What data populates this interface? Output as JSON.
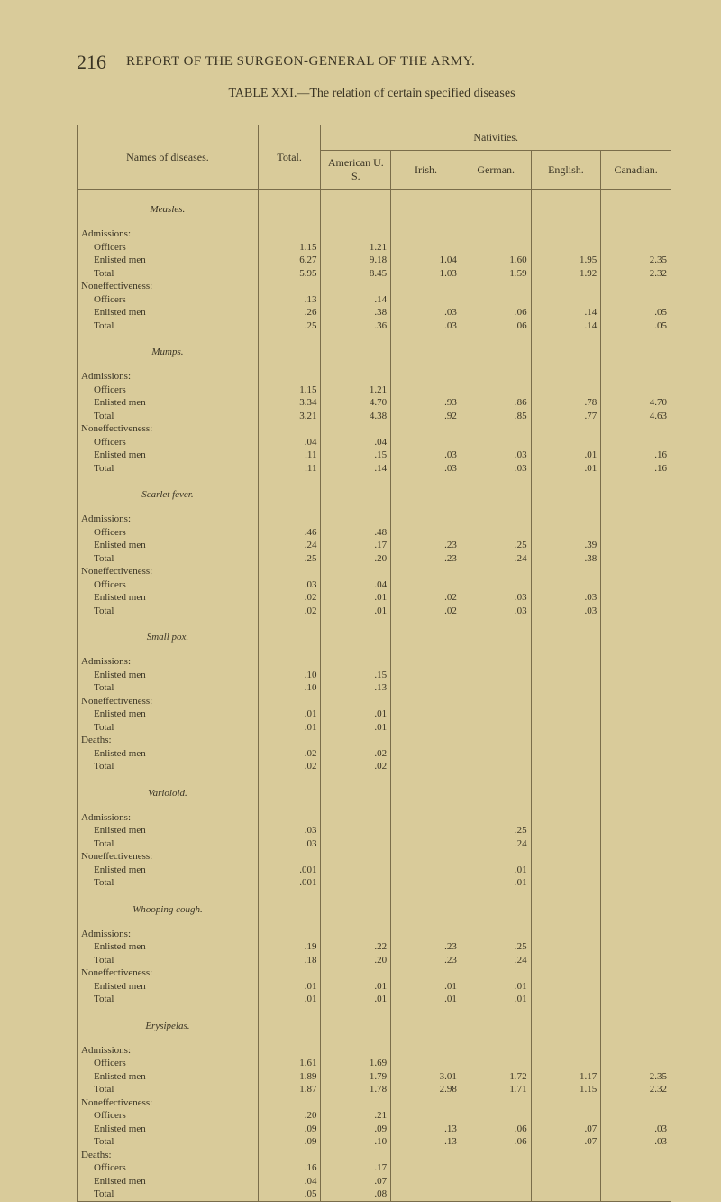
{
  "page_number": "216",
  "running_head": "REPORT OF THE SURGEON-GENERAL OF THE ARMY.",
  "table_caption": "TABLE XXI.—The relation of certain specified diseases",
  "columns": {
    "names": "Names of diseases.",
    "total": "Total.",
    "nativities": "Nativities.",
    "american": "American\nU. S.",
    "irish": "Irish.",
    "german": "German.",
    "english": "English.",
    "canadian": "Canadian."
  },
  "diseases": [
    {
      "name": "Measles.",
      "sections": [
        {
          "title": "Admissions:",
          "rows": [
            {
              "label": "Officers",
              "total": "1.15",
              "am": "1.21",
              "ir": "",
              "ge": "",
              "en": "",
              "ca": ""
            },
            {
              "label": "Enlisted men",
              "total": "6.27",
              "am": "9.18",
              "ir": "1.04",
              "ge": "1.60",
              "en": "1.95",
              "ca": "2.35"
            },
            {
              "label": "Total",
              "total": "5.95",
              "am": "8.45",
              "ir": "1.03",
              "ge": "1.59",
              "en": "1.92",
              "ca": "2.32"
            }
          ]
        },
        {
          "title": "Noneffectiveness:",
          "rows": [
            {
              "label": "Officers",
              "total": ".13",
              "am": ".14",
              "ir": "",
              "ge": "",
              "en": "",
              "ca": ""
            },
            {
              "label": "Enlisted men",
              "total": ".26",
              "am": ".38",
              "ir": ".03",
              "ge": ".06",
              "en": ".14",
              "ca": ".05"
            },
            {
              "label": "Total",
              "total": ".25",
              "am": ".36",
              "ir": ".03",
              "ge": ".06",
              "en": ".14",
              "ca": ".05"
            }
          ]
        }
      ]
    },
    {
      "name": "Mumps.",
      "sections": [
        {
          "title": "Admissions:",
          "rows": [
            {
              "label": "Officers",
              "total": "1.15",
              "am": "1.21",
              "ir": "",
              "ge": "",
              "en": "",
              "ca": ""
            },
            {
              "label": "Enlisted men",
              "total": "3.34",
              "am": "4.70",
              "ir": ".93",
              "ge": ".86",
              "en": ".78",
              "ca": "4.70"
            },
            {
              "label": "Total",
              "total": "3.21",
              "am": "4.38",
              "ir": ".92",
              "ge": ".85",
              "en": ".77",
              "ca": "4.63"
            }
          ]
        },
        {
          "title": "Noneffectiveness:",
          "rows": [
            {
              "label": "Officers",
              "total": ".04",
              "am": ".04",
              "ir": "",
              "ge": "",
              "en": "",
              "ca": ""
            },
            {
              "label": "Enlisted men",
              "total": ".11",
              "am": ".15",
              "ir": ".03",
              "ge": ".03",
              "en": ".01",
              "ca": ".16"
            },
            {
              "label": "Total",
              "total": ".11",
              "am": ".14",
              "ir": ".03",
              "ge": ".03",
              "en": ".01",
              "ca": ".16"
            }
          ]
        }
      ]
    },
    {
      "name": "Scarlet fever.",
      "sections": [
        {
          "title": "Admissions:",
          "rows": [
            {
              "label": "Officers",
              "total": ".46",
              "am": ".48",
              "ir": "",
              "ge": "",
              "en": "",
              "ca": ""
            },
            {
              "label": "Enlisted men",
              "total": ".24",
              "am": ".17",
              "ir": ".23",
              "ge": ".25",
              "en": ".39",
              "ca": ""
            },
            {
              "label": "Total",
              "total": ".25",
              "am": ".20",
              "ir": ".23",
              "ge": ".24",
              "en": ".38",
              "ca": ""
            }
          ]
        },
        {
          "title": "Noneffectiveness:",
          "rows": [
            {
              "label": "Officers",
              "total": ".03",
              "am": ".04",
              "ir": "",
              "ge": "",
              "en": "",
              "ca": ""
            },
            {
              "label": "Enlisted men",
              "total": ".02",
              "am": ".01",
              "ir": ".02",
              "ge": ".03",
              "en": ".03",
              "ca": ""
            },
            {
              "label": "Total",
              "total": ".02",
              "am": ".01",
              "ir": ".02",
              "ge": ".03",
              "en": ".03",
              "ca": ""
            }
          ]
        }
      ]
    },
    {
      "name": "Small pox.",
      "sections": [
        {
          "title": "Admissions:",
          "rows": [
            {
              "label": "Enlisted men",
              "total": ".10",
              "am": ".15",
              "ir": "",
              "ge": "",
              "en": "",
              "ca": ""
            },
            {
              "label": "Total",
              "total": ".10",
              "am": ".13",
              "ir": "",
              "ge": "",
              "en": "",
              "ca": ""
            }
          ]
        },
        {
          "title": "Noneffectiveness:",
          "rows": [
            {
              "label": "Enlisted men",
              "total": ".01",
              "am": ".01",
              "ir": "",
              "ge": "",
              "en": "",
              "ca": ""
            },
            {
              "label": "Total",
              "total": ".01",
              "am": ".01",
              "ir": "",
              "ge": "",
              "en": "",
              "ca": ""
            }
          ]
        },
        {
          "title": "Deaths:",
          "rows": [
            {
              "label": "Enlisted men",
              "total": ".02",
              "am": ".02",
              "ir": "",
              "ge": "",
              "en": "",
              "ca": ""
            },
            {
              "label": "Total",
              "total": ".02",
              "am": ".02",
              "ir": "",
              "ge": "",
              "en": "",
              "ca": ""
            }
          ]
        }
      ]
    },
    {
      "name": "Varioloid.",
      "sections": [
        {
          "title": "Admissions:",
          "rows": [
            {
              "label": "Enlisted men",
              "total": ".03",
              "am": "",
              "ir": "",
              "ge": ".25",
              "en": "",
              "ca": ""
            },
            {
              "label": "Total",
              "total": ".03",
              "am": "",
              "ir": "",
              "ge": ".24",
              "en": "",
              "ca": ""
            }
          ]
        },
        {
          "title": "Noneffectiveness:",
          "rows": [
            {
              "label": "Enlisted men",
              "total": ".001",
              "am": "",
              "ir": "",
              "ge": ".01",
              "en": "",
              "ca": ""
            },
            {
              "label": "Total",
              "total": ".001",
              "am": "",
              "ir": "",
              "ge": ".01",
              "en": "",
              "ca": ""
            }
          ]
        }
      ]
    },
    {
      "name": "Whooping cough.",
      "sections": [
        {
          "title": "Admissions:",
          "rows": [
            {
              "label": "Enlisted men",
              "total": ".19",
              "am": ".22",
              "ir": ".23",
              "ge": ".25",
              "en": "",
              "ca": ""
            },
            {
              "label": "Total",
              "total": ".18",
              "am": ".20",
              "ir": ".23",
              "ge": ".24",
              "en": "",
              "ca": ""
            }
          ]
        },
        {
          "title": "Noneffectiveness:",
          "rows": [
            {
              "label": "Enlisted men",
              "total": ".01",
              "am": ".01",
              "ir": ".01",
              "ge": ".01",
              "en": "",
              "ca": ""
            },
            {
              "label": "Total",
              "total": ".01",
              "am": ".01",
              "ir": ".01",
              "ge": ".01",
              "en": "",
              "ca": ""
            }
          ]
        }
      ]
    },
    {
      "name": "Erysipelas.",
      "sections": [
        {
          "title": "Admissions:",
          "rows": [
            {
              "label": "Officers",
              "total": "1.61",
              "am": "1.69",
              "ir": "",
              "ge": "",
              "en": "",
              "ca": ""
            },
            {
              "label": "Enlisted men",
              "total": "1.89",
              "am": "1.79",
              "ir": "3.01",
              "ge": "1.72",
              "en": "1.17",
              "ca": "2.35"
            },
            {
              "label": "Total",
              "total": "1.87",
              "am": "1.78",
              "ir": "2.98",
              "ge": "1.71",
              "en": "1.15",
              "ca": "2.32"
            }
          ]
        },
        {
          "title": "Noneffectiveness:",
          "rows": [
            {
              "label": "Officers",
              "total": ".20",
              "am": ".21",
              "ir": "",
              "ge": "",
              "en": "",
              "ca": ""
            },
            {
              "label": "Enlisted men",
              "total": ".09",
              "am": ".09",
              "ir": ".13",
              "ge": ".06",
              "en": ".07",
              "ca": ".03"
            },
            {
              "label": "Total",
              "total": ".09",
              "am": ".10",
              "ir": ".13",
              "ge": ".06",
              "en": ".07",
              "ca": ".03"
            }
          ]
        },
        {
          "title": "Deaths:",
          "rows": [
            {
              "label": "Officers",
              "total": ".16",
              "am": ".17",
              "ir": "",
              "ge": "",
              "en": "",
              "ca": ""
            },
            {
              "label": "Enlisted men",
              "total": ".04",
              "am": ".07",
              "ir": "",
              "ge": "",
              "en": "",
              "ca": ""
            },
            {
              "label": "Total",
              "total": ".05",
              "am": ".08",
              "ir": "",
              "ge": "",
              "en": "",
              "ca": ""
            }
          ]
        }
      ]
    }
  ],
  "style": {
    "background": "#d9cb9a",
    "text_color": "#3a3424",
    "rule_color": "#7a6d4a"
  }
}
